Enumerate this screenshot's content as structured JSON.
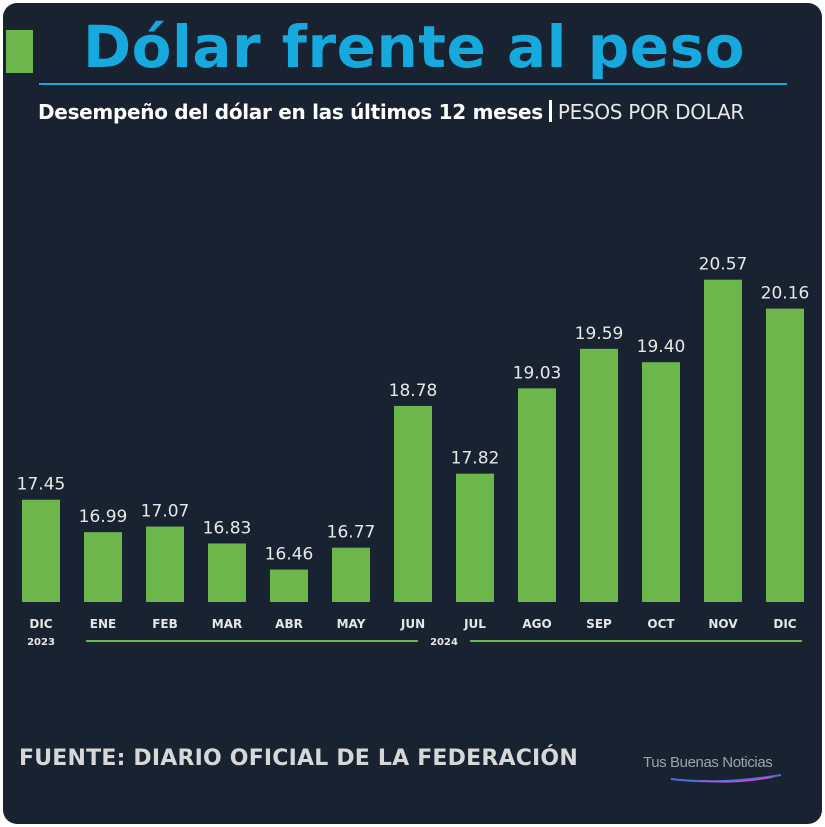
{
  "header": {
    "title": "Dólar frente al peso",
    "subtitle": "Desempeño del dólar en las últimos 12 meses",
    "unit": "PESOS POR DOLAR"
  },
  "footer": {
    "source": "FUENTE: DIARIO OFICIAL DE LA FEDERACIÓN",
    "brand": "Tus Buenas Noticias"
  },
  "colors": {
    "background": "#182230",
    "title": "#16a9de",
    "bar": "#6cb64b",
    "text": "#e8e8e8"
  },
  "chart_data": {
    "type": "bar",
    "title": "Dólar frente al peso",
    "subtitle": "Desempeño del dólar en las últimos 12 meses",
    "unit": "PESOS POR DOLAR",
    "categories": [
      "DIC",
      "ENE",
      "FEB",
      "MAR",
      "ABR",
      "MAY",
      "JUN",
      "JUL",
      "AGO",
      "SEP",
      "OCT",
      "NOV",
      "DIC"
    ],
    "values": [
      17.45,
      16.99,
      17.07,
      16.83,
      16.46,
      16.77,
      18.78,
      17.82,
      19.03,
      19.59,
      19.4,
      20.57,
      20.16
    ],
    "value_labels": [
      "17.45",
      "16.99",
      "17.07",
      "16.83",
      "16.46",
      "16.77",
      "18.78",
      "17.82",
      "19.03",
      "19.59",
      "19.40",
      "20.57",
      "20.16"
    ],
    "year_groups": [
      {
        "label": "2023",
        "from": 0,
        "to": 0
      },
      {
        "label": "2024",
        "from": 1,
        "to": 12
      }
    ],
    "ylim": [
      16,
      20.75
    ],
    "grid": false,
    "legend": "none"
  }
}
